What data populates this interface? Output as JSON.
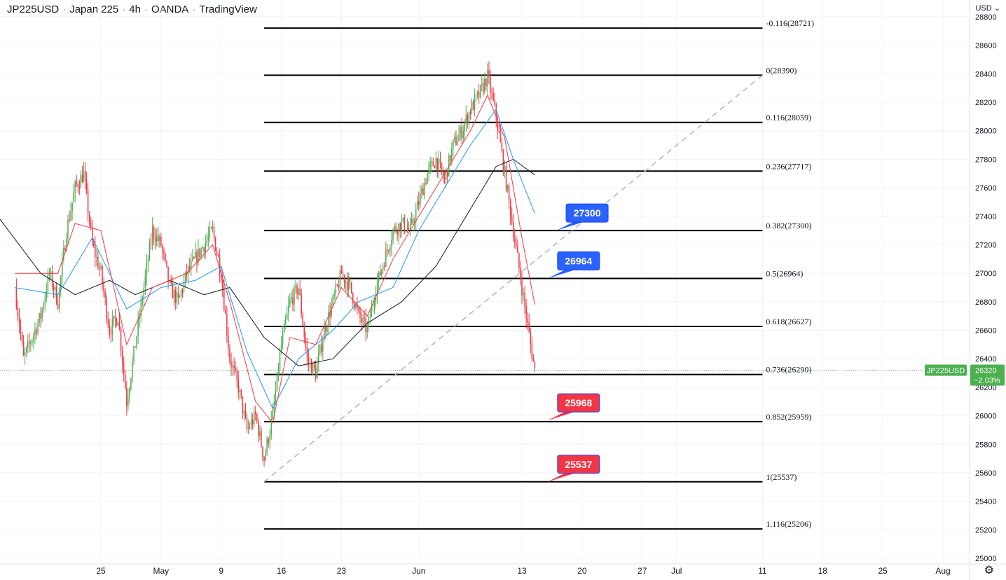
{
  "header": {
    "symbol": "JP225USD",
    "name": "Japan 225",
    "interval": "4h",
    "broker": "OANDA",
    "platform": "TradingView"
  },
  "currency_label": "USD",
  "settings_icon": "gear-icon",
  "chart_data": {
    "type": "candlestick",
    "title": "",
    "ylim": [
      25000,
      28850
    ],
    "y_ticks": [
      25000,
      25200,
      25400,
      25600,
      25800,
      26000,
      26200,
      26400,
      26600,
      26800,
      27000,
      27200,
      27400,
      27600,
      27800,
      28000,
      28200,
      28400,
      28600,
      28800
    ],
    "x_ticks": [
      {
        "label": "25",
        "x": "2022-04-25"
      },
      {
        "label": "May",
        "x": "2022-05-02"
      },
      {
        "label": "9",
        "x": "2022-05-09"
      },
      {
        "label": "16",
        "x": "2022-05-16"
      },
      {
        "label": "23",
        "x": "2022-05-23"
      },
      {
        "label": "Jun",
        "x": "2022-06-01"
      },
      {
        "label": "13",
        "x": "2022-06-13"
      },
      {
        "label": "20",
        "x": "2022-06-20"
      },
      {
        "label": "27",
        "x": "2022-06-27"
      },
      {
        "label": "Jul",
        "x": "2022-07-01"
      },
      {
        "label": "11",
        "x": "2022-07-11"
      },
      {
        "label": "18",
        "x": "2022-07-18"
      },
      {
        "label": "25",
        "x": "2022-07-25"
      },
      {
        "label": "Aug",
        "x": "2022-08-01"
      }
    ],
    "price_path": [
      [
        "2022-04-15",
        26900
      ],
      [
        "2022-04-16",
        26400
      ],
      [
        "2022-04-18",
        26700
      ],
      [
        "2022-04-19",
        27000
      ],
      [
        "2022-04-20",
        26800
      ],
      [
        "2022-04-21",
        27300
      ],
      [
        "2022-04-22",
        27600
      ],
      [
        "2022-04-23",
        27700
      ],
      [
        "2022-04-24",
        27200
      ],
      [
        "2022-04-25",
        27000
      ],
      [
        "2022-04-26",
        26600
      ],
      [
        "2022-04-27",
        26700
      ],
      [
        "2022-04-28",
        26100
      ],
      [
        "2022-04-29",
        26500
      ],
      [
        "2022-04-30",
        26900
      ],
      [
        "2022-05-01",
        27300
      ],
      [
        "2022-05-02",
        27200
      ],
      [
        "2022-05-03",
        26900
      ],
      [
        "2022-05-04",
        26800
      ],
      [
        "2022-05-05",
        27000
      ],
      [
        "2022-05-06",
        27100
      ],
      [
        "2022-05-07",
        27200
      ],
      [
        "2022-05-08",
        27300
      ],
      [
        "2022-05-09",
        27000
      ],
      [
        "2022-05-10",
        26400
      ],
      [
        "2022-05-11",
        26200
      ],
      [
        "2022-05-12",
        25900
      ],
      [
        "2022-05-13",
        26000
      ],
      [
        "2022-05-14",
        25700
      ],
      [
        "2022-05-15",
        26000
      ],
      [
        "2022-05-16",
        26500
      ],
      [
        "2022-05-17",
        26800
      ],
      [
        "2022-05-18",
        26900
      ],
      [
        "2022-05-19",
        26400
      ],
      [
        "2022-05-20",
        26300
      ],
      [
        "2022-05-21",
        26600
      ],
      [
        "2022-05-22",
        26800
      ],
      [
        "2022-05-23",
        27000
      ],
      [
        "2022-05-24",
        26900
      ],
      [
        "2022-05-25",
        26700
      ],
      [
        "2022-05-26",
        26600
      ],
      [
        "2022-05-27",
        26900
      ],
      [
        "2022-05-28",
        27100
      ],
      [
        "2022-05-29",
        27300
      ],
      [
        "2022-05-30",
        27350
      ],
      [
        "2022-05-31",
        27300
      ],
      [
        "2022-06-01",
        27500
      ],
      [
        "2022-06-02",
        27700
      ],
      [
        "2022-06-03",
        27800
      ],
      [
        "2022-06-04",
        27650
      ],
      [
        "2022-06-05",
        27900
      ],
      [
        "2022-06-06",
        28000
      ],
      [
        "2022-06-07",
        28150
      ],
      [
        "2022-06-08",
        28250
      ],
      [
        "2022-06-09",
        28380
      ],
      [
        "2022-06-10",
        28100
      ],
      [
        "2022-06-11",
        27700
      ],
      [
        "2022-06-12",
        27300
      ],
      [
        "2022-06-13",
        26900
      ],
      [
        "2022-06-14",
        26500
      ],
      [
        "2022-06-14T12:00",
        26320
      ]
    ],
    "ma_fast": [
      [
        "2022-04-15",
        27000
      ],
      [
        "2022-04-20",
        27000
      ],
      [
        "2022-04-22",
        27350
      ],
      [
        "2022-04-25",
        27300
      ],
      [
        "2022-04-28",
        26500
      ],
      [
        "2022-05-01",
        26900
      ],
      [
        "2022-05-05",
        27000
      ],
      [
        "2022-05-08",
        27200
      ],
      [
        "2022-05-10",
        26800
      ],
      [
        "2022-05-13",
        26100
      ],
      [
        "2022-05-15",
        25950
      ],
      [
        "2022-05-17",
        26550
      ],
      [
        "2022-05-20",
        26500
      ],
      [
        "2022-05-23",
        26900
      ],
      [
        "2022-05-26",
        26700
      ],
      [
        "2022-05-29",
        27100
      ],
      [
        "2022-06-01",
        27400
      ],
      [
        "2022-06-04",
        27700
      ],
      [
        "2022-06-07",
        28000
      ],
      [
        "2022-06-09",
        28250
      ],
      [
        "2022-06-11",
        27950
      ],
      [
        "2022-06-13",
        27250
      ],
      [
        "2022-06-14T12:00",
        26780
      ]
    ],
    "ma_mid": [
      [
        "2022-04-15",
        26900
      ],
      [
        "2022-04-20",
        26850
      ],
      [
        "2022-04-24",
        27250
      ],
      [
        "2022-04-28",
        26750
      ],
      [
        "2022-05-02",
        26900
      ],
      [
        "2022-05-06",
        26950
      ],
      [
        "2022-05-09",
        27050
      ],
      [
        "2022-05-12",
        26450
      ],
      [
        "2022-05-15",
        26050
      ],
      [
        "2022-05-18",
        26400
      ],
      [
        "2022-05-22",
        26600
      ],
      [
        "2022-05-25",
        26800
      ],
      [
        "2022-05-29",
        26900
      ],
      [
        "2022-06-01",
        27300
      ],
      [
        "2022-06-04",
        27600
      ],
      [
        "2022-06-07",
        27900
      ],
      [
        "2022-06-10",
        28150
      ],
      [
        "2022-06-12",
        27800
      ],
      [
        "2022-06-14T12:00",
        27420
      ]
    ],
    "ma_slow": [
      [
        "2022-04-13",
        27400
      ],
      [
        "2022-04-18",
        27000
      ],
      [
        "2022-04-22",
        26850
      ],
      [
        "2022-04-26",
        26950
      ],
      [
        "2022-04-29",
        26850
      ],
      [
        "2022-05-03",
        26950
      ],
      [
        "2022-05-07",
        26850
      ],
      [
        "2022-05-10",
        26900
      ],
      [
        "2022-05-14",
        26550
      ],
      [
        "2022-05-18",
        26350
      ],
      [
        "2022-05-22",
        26400
      ],
      [
        "2022-05-26",
        26650
      ],
      [
        "2022-05-30",
        26800
      ],
      [
        "2022-06-03",
        27050
      ],
      [
        "2022-06-07",
        27450
      ],
      [
        "2022-06-10",
        27750
      ],
      [
        "2022-06-12",
        27800
      ],
      [
        "2022-06-14T12:00",
        27690
      ]
    ],
    "trend_line": {
      "from": [
        "2022-05-14",
        25537
      ],
      "to": [
        "2022-07-11",
        28390
      ]
    },
    "fib_levels": [
      {
        "label": "-0.116(28721)",
        "value": 28721
      },
      {
        "label": "0(28390)",
        "value": 28390
      },
      {
        "label": "0.116(28059)",
        "value": 28059
      },
      {
        "label": "0.236(27717)",
        "value": 27717
      },
      {
        "label": "0.382(27300)",
        "value": 27300
      },
      {
        "label": "0.5(26964)",
        "value": 26964
      },
      {
        "label": "0.618(26627)",
        "value": 26627
      },
      {
        "label": "0.736(26290)",
        "value": 26290
      },
      {
        "label": "0.852(25959)",
        "value": 25959
      },
      {
        "label": "1(25537)",
        "value": 25537
      },
      {
        "label": "1.116(25206)",
        "value": 25206
      }
    ],
    "fib_range": {
      "from": "2022-05-14",
      "to": "2022-07-11"
    },
    "callouts": [
      {
        "text": "27300",
        "value": 27300,
        "at": "2022-06-17",
        "kind": "resistance",
        "color": "#2962ff"
      },
      {
        "text": "26964",
        "value": 26964,
        "at": "2022-06-16",
        "kind": "resistance",
        "color": "#2962ff"
      },
      {
        "text": "25968",
        "value": 25968,
        "at": "2022-06-16",
        "kind": "support",
        "color": "#f23645"
      },
      {
        "text": "25537",
        "value": 25537,
        "at": "2022-06-16",
        "kind": "support",
        "color": "#f23645"
      }
    ],
    "last_price": {
      "symbol": "JP225USD",
      "price": "26320",
      "change": "−2.03%",
      "value": 26320,
      "color": "#4caf50"
    },
    "colors": {
      "up": "#4caf50",
      "down": "#f23645",
      "ma_fast": "#f23645",
      "ma_mid": "#2196f3",
      "ma_slow": "#131722",
      "fib": "#000000",
      "trend": "#b2b5be"
    },
    "grid": true
  }
}
